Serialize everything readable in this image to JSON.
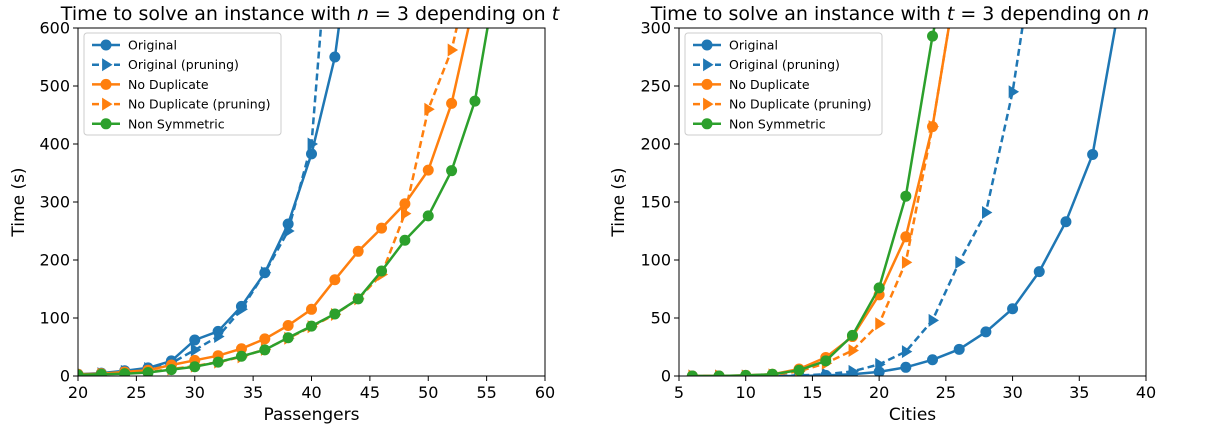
{
  "chart_data": [
    {
      "type": "line",
      "title": "Time to solve an instance with n = 3 depending on t",
      "title_parts": {
        "prefix": "Time to solve an instance with ",
        "var": "n",
        "mid": " = 3 depending on ",
        "var2": "t"
      },
      "xlabel": "Passengers",
      "ylabel": "Time (s)",
      "xlim": [
        20,
        60
      ],
      "ylim": [
        0,
        600
      ],
      "xticks": [
        20,
        25,
        30,
        35,
        40,
        45,
        50,
        55,
        60
      ],
      "yticks": [
        0,
        100,
        200,
        300,
        400,
        500,
        600
      ],
      "legend_position": "top-left",
      "series": [
        {
          "name": "Original",
          "color": "#1f77b4",
          "marker": "circle",
          "dash": false,
          "x": [
            20,
            22,
            24,
            26,
            28,
            30,
            32,
            34,
            36,
            38,
            40,
            42,
            43
          ],
          "y": [
            3,
            5,
            9,
            14,
            26,
            62,
            77,
            120,
            178,
            262,
            383,
            550,
            700
          ]
        },
        {
          "name": "Original (pruning)",
          "color": "#1f77b4",
          "marker": "triangle-right",
          "dash": true,
          "x": [
            20,
            22,
            24,
            26,
            28,
            30,
            32,
            34,
            36,
            38,
            40,
            41
          ],
          "y": [
            2,
            4,
            8,
            13,
            22,
            45,
            68,
            115,
            178,
            250,
            400,
            650
          ]
        },
        {
          "name": "No Duplicate",
          "color": "#ff7f0e",
          "marker": "circle",
          "dash": false,
          "x": [
            20,
            22,
            24,
            26,
            28,
            30,
            32,
            34,
            36,
            38,
            40,
            42,
            44,
            46,
            48,
            50,
            52,
            54
          ],
          "y": [
            3,
            4,
            7,
            10,
            19,
            27,
            35,
            47,
            64,
            87,
            115,
            166,
            215,
            255,
            297,
            355,
            470,
            650
          ]
        },
        {
          "name": "No Duplicate (pruning)",
          "color": "#ff7f0e",
          "marker": "triangle-right",
          "dash": true,
          "x": [
            20,
            22,
            24,
            26,
            28,
            30,
            32,
            34,
            36,
            38,
            40,
            42,
            44,
            46,
            48,
            50,
            52,
            53
          ],
          "y": [
            2,
            3,
            5,
            7,
            12,
            17,
            24,
            33,
            46,
            65,
            85,
            106,
            133,
            175,
            280,
            460,
            562,
            650
          ]
        },
        {
          "name": "Non Symmetric",
          "color": "#2ca02c",
          "marker": "circle",
          "dash": false,
          "x": [
            20,
            22,
            24,
            26,
            28,
            30,
            32,
            34,
            36,
            38,
            40,
            42,
            44,
            46,
            48,
            50,
            52,
            54,
            55.5
          ],
          "y": [
            2,
            3,
            4,
            6,
            11,
            16,
            24,
            34,
            45,
            66,
            86,
            107,
            133,
            181,
            234,
            276,
            354,
            474,
            650
          ]
        }
      ]
    },
    {
      "type": "line",
      "title": "Time to solve an instance with t = 3 depending on n",
      "title_parts": {
        "prefix": "Time to solve an instance with ",
        "var": "t",
        "mid": " = 3 depending on ",
        "var2": "n"
      },
      "xlabel": "Cities",
      "ylabel": "Time (s)",
      "xlim": [
        5,
        40
      ],
      "ylim": [
        0,
        300
      ],
      "xticks": [
        5,
        10,
        15,
        20,
        25,
        30,
        35,
        40
      ],
      "yticks": [
        0,
        50,
        100,
        150,
        200,
        250,
        300
      ],
      "legend_position": "top-left",
      "series": [
        {
          "name": "Original",
          "color": "#1f77b4",
          "marker": "circle",
          "dash": false,
          "x": [
            6,
            8,
            10,
            12,
            14,
            16,
            18,
            20,
            22,
            24,
            26,
            28,
            30,
            32,
            34,
            36,
            38
          ],
          "y": [
            0,
            0,
            0,
            0,
            0,
            0.5,
            1.5,
            3.5,
            7.5,
            14,
            23,
            38,
            58,
            90,
            133,
            191,
            320
          ]
        },
        {
          "name": "Original (pruning)",
          "color": "#1f77b4",
          "marker": "triangle-right",
          "dash": true,
          "x": [
            6,
            8,
            10,
            12,
            14,
            16,
            18,
            20,
            22,
            24,
            26,
            28,
            30,
            31
          ],
          "y": [
            0,
            0,
            0,
            0,
            0.5,
            1.5,
            4,
            10,
            21,
            48,
            98,
            141,
            245,
            320
          ]
        },
        {
          "name": "No Duplicate",
          "color": "#ff7f0e",
          "marker": "circle",
          "dash": false,
          "x": [
            6,
            8,
            10,
            12,
            14,
            16,
            18,
            20,
            22,
            24,
            25.5
          ],
          "y": [
            0,
            0,
            0.5,
            1.5,
            6,
            16,
            34,
            70,
            120,
            215,
            320
          ]
        },
        {
          "name": "No Duplicate (pruning)",
          "color": "#ff7f0e",
          "marker": "triangle-right",
          "dash": true,
          "x": [
            6,
            8,
            10,
            12,
            14,
            16,
            18,
            20,
            22,
            24,
            25.5
          ],
          "y": [
            0,
            0,
            0,
            1,
            4,
            11,
            22,
            45,
            98,
            215,
            320
          ]
        },
        {
          "name": "Non Symmetric",
          "color": "#2ca02c",
          "marker": "circle",
          "dash": false,
          "x": [
            6,
            8,
            10,
            12,
            14,
            16,
            18,
            20,
            22,
            24,
            24.5
          ],
          "y": [
            0,
            0,
            0.5,
            1.5,
            5,
            13,
            35,
            76,
            155,
            293,
            320
          ]
        }
      ]
    }
  ]
}
